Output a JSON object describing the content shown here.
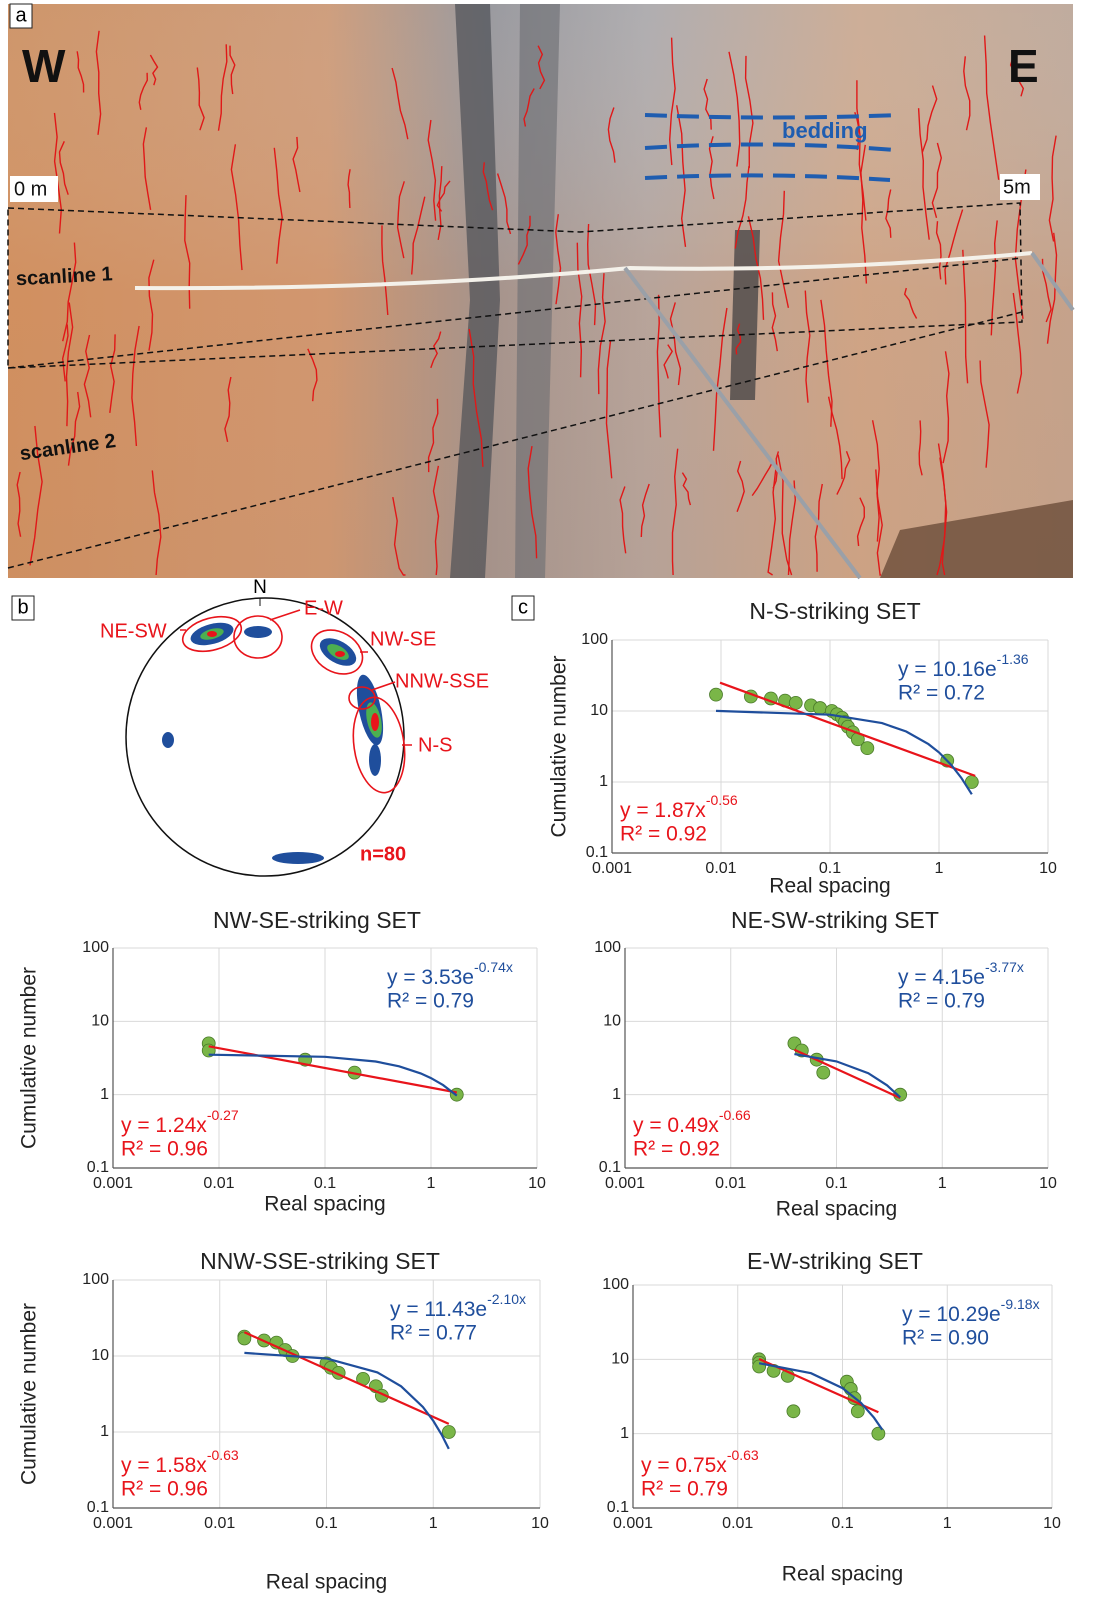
{
  "panel_labels": [
    "a",
    "b",
    "c"
  ],
  "photo": {
    "labels": [
      "W",
      "E",
      "0 m",
      "5m",
      "bedding",
      "scanline 1",
      "scanline 2"
    ]
  },
  "stereonet": {
    "north": "N",
    "sets": [
      "NE-SW",
      "E-W",
      "NW-SE",
      "NNW-SSE",
      "N-S"
    ],
    "n": "n=80"
  },
  "chart_data": [
    {
      "type": "scatter",
      "title": "N-S-striking SET",
      "x_label": "Real spacing",
      "y_label": "Cumulative number",
      "xscale": "log",
      "yscale": "log",
      "xlim": [
        0.001,
        10
      ],
      "ylim": [
        0.1,
        100
      ],
      "xticks": [
        0.001,
        0.01,
        0.1,
        1,
        10
      ],
      "yticks": [
        0.1,
        1,
        10,
        100
      ],
      "grid": true,
      "series": [
        {
          "color": "#7ab648",
          "x": [
            0.009,
            0.0188,
            0.0287,
            0.0387,
            0.0485,
            0.067,
            0.081,
            0.104,
            0.116,
            0.129,
            0.137,
            0.146,
            0.162,
            0.18,
            0.22,
            1.19,
            2.0
          ],
          "values": [
            17,
            16,
            15,
            14,
            13,
            12,
            11,
            10,
            9,
            8,
            7,
            6,
            5,
            4,
            3,
            2,
            1
          ]
        }
      ],
      "fits": [
        {
          "color": "#e8141b",
          "x": [
            0.0098,
            2.15
          ],
          "values": [
            25,
            1.22
          ],
          "equation": "y = 1.87x",
          "exponent": "-0.56",
          "r2": "R² = 0.92"
        },
        {
          "color": "#1f4e9c",
          "x": [
            0.009,
            0.1,
            0.3,
            0.5,
            0.8,
            1.0,
            1.3,
            1.6,
            2.0
          ],
          "values": [
            10.04,
            8.87,
            6.76,
            5.14,
            3.42,
            2.61,
            1.73,
            1.15,
            0.67
          ],
          "equation": "y = 10.16e",
          "exponent": "-1.36",
          "r2": "R² = 0.72"
        }
      ]
    },
    {
      "type": "scatter",
      "title": "NW-SE-striking SET",
      "x_label": "Real spacing",
      "y_label": "Cumulative number",
      "xscale": "log",
      "yscale": "log",
      "xlim": [
        0.001,
        10
      ],
      "ylim": [
        0.1,
        100
      ],
      "xticks": [
        0.001,
        0.01,
        0.1,
        1,
        10
      ],
      "yticks": [
        0.1,
        1,
        10,
        100
      ],
      "grid": true,
      "series": [
        {
          "color": "#7ab648",
          "x": [
            0.008,
            0.008,
            0.065,
            0.19,
            1.75
          ],
          "values": [
            5,
            4,
            3,
            2,
            1
          ]
        }
      ],
      "fits": [
        {
          "color": "#e8141b",
          "x": [
            0.008,
            1.75
          ],
          "values": [
            4.56,
            1.07
          ],
          "equation": "y = 1.24x",
          "exponent": "-0.27",
          "r2": "R² = 0.96"
        },
        {
          "color": "#1f4e9c",
          "x": [
            0.008,
            0.1,
            0.3,
            0.5,
            0.8,
            1.0,
            1.3,
            1.75
          ],
          "values": [
            3.51,
            3.28,
            2.83,
            2.44,
            1.95,
            1.68,
            1.35,
            0.97
          ],
          "equation": "y = 3.53e",
          "exponent": "-0.74x",
          "r2": "R² = 0.79"
        }
      ]
    },
    {
      "type": "scatter",
      "title": "NE-SW-striking SET",
      "x_label": "Real spacing",
      "xscale": "log",
      "yscale": "log",
      "xlim": [
        0.001,
        10
      ],
      "ylim": [
        0.1,
        100
      ],
      "xticks": [
        0.001,
        0.01,
        0.1,
        1,
        10
      ],
      "yticks": [
        0.1,
        1,
        10,
        100
      ],
      "grid": true,
      "series": [
        {
          "color": "#7ab648",
          "x": [
            0.04,
            0.047,
            0.065,
            0.075,
            0.4
          ],
          "values": [
            5,
            4,
            3,
            2,
            1
          ]
        }
      ],
      "fits": [
        {
          "color": "#e8141b",
          "x": [
            0.04,
            0.4
          ],
          "values": [
            4.1,
            0.9
          ],
          "equation": "y = 0.49x",
          "exponent": "-0.66",
          "r2": "R² = 0.92"
        },
        {
          "color": "#1f4e9c",
          "x": [
            0.04,
            0.1,
            0.2,
            0.3,
            0.4
          ],
          "values": [
            3.57,
            2.84,
            1.96,
            1.34,
            0.92
          ],
          "equation": "y = 4.15e",
          "exponent": "-3.77x",
          "r2": "R² = 0.79"
        }
      ]
    },
    {
      "type": "scatter",
      "title": "NNW-SSE-striking SET",
      "x_label": "Real spacing",
      "y_label": "Cumulative number",
      "xscale": "log",
      "yscale": "log",
      "xlim": [
        0.001,
        10
      ],
      "ylim": [
        0.1,
        100
      ],
      "xticks": [
        0.001,
        0.01,
        0.1,
        1,
        10
      ],
      "yticks": [
        0.1,
        1,
        10,
        100
      ],
      "grid": true,
      "series": [
        {
          "color": "#7ab648",
          "x": [
            0.017,
            0.017,
            0.026,
            0.034,
            0.041,
            0.048,
            0.1,
            0.11,
            0.13,
            0.22,
            0.29,
            0.33,
            1.4
          ],
          "values": [
            18,
            17,
            16,
            15,
            12,
            10,
            8,
            7,
            6,
            5,
            4,
            3,
            1
          ]
        }
      ],
      "fits": [
        {
          "color": "#e8141b",
          "x": [
            0.017,
            1.4
          ],
          "values": [
            20.5,
            1.28
          ],
          "equation": "y = 1.58x",
          "exponent": "-0.63",
          "r2": "R² = 0.96"
        },
        {
          "color": "#1f4e9c",
          "x": [
            0.017,
            0.1,
            0.3,
            0.5,
            0.8,
            1.0,
            1.2,
            1.4
          ],
          "values": [
            11.0,
            9.27,
            6.08,
            3.99,
            2.13,
            1.4,
            0.92,
            0.6
          ],
          "equation": "y = 11.43e",
          "exponent": "-2.10x",
          "r2": "R² = 0.77"
        }
      ]
    },
    {
      "type": "scatter",
      "title": "E-W-striking SET",
      "x_label": "Real spacing",
      "xscale": "log",
      "yscale": "log",
      "xlim": [
        0.001,
        10
      ],
      "ylim": [
        0.1,
        100
      ],
      "xticks": [
        0.001,
        0.01,
        0.1,
        1,
        10
      ],
      "yticks": [
        0.1,
        1,
        10,
        100
      ],
      "grid": true,
      "series": [
        {
          "color": "#7ab648",
          "x": [
            0.016,
            0.016,
            0.016,
            0.022,
            0.03,
            0.034,
            0.11,
            0.12,
            0.13,
            0.14,
            0.22
          ],
          "values": [
            10,
            9,
            8,
            7,
            6,
            2,
            5,
            4,
            3,
            2,
            1
          ]
        }
      ],
      "fits": [
        {
          "color": "#e8141b",
          "x": [
            0.016,
            0.22
          ],
          "values": [
            10.1,
            1.94
          ],
          "equation": "y = 0.75x",
          "exponent": "-0.63",
          "r2": "R² = 0.79"
        },
        {
          "color": "#1f4e9c",
          "x": [
            0.016,
            0.05,
            0.1,
            0.15,
            0.2,
            0.24
          ],
          "values": [
            8.87,
            6.5,
            4.1,
            2.6,
            1.64,
            1.13
          ],
          "equation": "y = 10.29e",
          "exponent": "-9.18x",
          "r2": "R² = 0.90"
        }
      ]
    }
  ]
}
